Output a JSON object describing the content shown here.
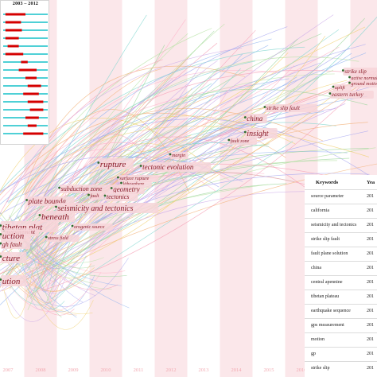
{
  "burst_panel": {
    "title": "2003 – 2012",
    "rows": [
      {
        "burst": [
          0.05,
          0.5
        ]
      },
      {
        "burst": [
          0.05,
          0.4
        ]
      },
      {
        "burst": [
          0.05,
          0.42
        ]
      },
      {
        "burst": [
          0.05,
          0.35
        ]
      },
      {
        "burst": [
          0.1,
          0.35
        ]
      },
      {
        "burst": [
          0.05,
          0.45
        ]
      },
      {
        "burst": [
          0.4,
          0.55
        ]
      },
      {
        "burst": [
          0.35,
          0.75
        ]
      },
      {
        "burst": [
          0.5,
          0.75
        ]
      },
      {
        "burst": [
          0.55,
          0.85
        ]
      },
      {
        "burst": [
          0.45,
          0.8
        ]
      },
      {
        "burst": [
          0.55,
          0.9
        ]
      },
      {
        "burst": [
          0.6,
          0.9
        ]
      },
      {
        "burst": [
          0.5,
          0.8
        ]
      },
      {
        "burst": [
          0.55,
          0.75
        ]
      },
      {
        "burst": [
          0.45,
          0.9
        ]
      }
    ]
  },
  "chart_data": {
    "type": "timeline",
    "x_ticks": [
      "2007",
      "2008",
      "2009",
      "2010",
      "2011",
      "2012",
      "2013",
      "2014",
      "2015",
      "2016",
      "2017",
      "2018",
      "2019",
      "2020"
    ],
    "nodes": [
      {
        "label": "earthquake se",
        "year": 2018.8,
        "row": 0.82,
        "size": 7
      },
      {
        "label": "strike slip",
        "year": 2017.3,
        "row": 0.91,
        "size": 7
      },
      {
        "label": "active normal fault",
        "year": 2017.5,
        "row": 0.99,
        "size": 6
      },
      {
        "label": "uplift",
        "year": 2017.0,
        "row": 1.11,
        "size": 6
      },
      {
        "label": "ground motion",
        "year": 2017.5,
        "row": 1.06,
        "size": 6
      },
      {
        "label": "eastern turkey",
        "year": 2016.9,
        "row": 1.2,
        "size": 7
      },
      {
        "label": "strike slip fault",
        "year": 2014.9,
        "row": 1.37,
        "size": 7
      },
      {
        "label": "china",
        "year": 2014.3,
        "row": 1.51,
        "size": 9
      },
      {
        "label": "insight",
        "year": 2014.3,
        "row": 1.7,
        "size": 10
      },
      {
        "label": "fault zone",
        "year": 2013.8,
        "row": 1.78,
        "size": 6
      },
      {
        "label": "margin",
        "year": 2012.0,
        "row": 1.96,
        "size": 6
      },
      {
        "label": "rupture",
        "year": 2009.8,
        "row": 2.09,
        "size": 11
      },
      {
        "label": "tectonic evolution",
        "year": 2011.1,
        "row": 2.12,
        "size": 9
      },
      {
        "label": "surface rupture",
        "year": 2010.4,
        "row": 2.25,
        "size": 6
      },
      {
        "label": "lithosphere",
        "year": 2010.5,
        "row": 2.32,
        "size": 6
      },
      {
        "label": "subduction zone",
        "year": 2008.6,
        "row": 2.39,
        "size": 8
      },
      {
        "label": "geometry",
        "year": 2010.2,
        "row": 2.4,
        "size": 9
      },
      {
        "label": "fault",
        "year": 2009.5,
        "row": 2.47,
        "size": 6
      },
      {
        "label": "tectonics",
        "year": 2010.0,
        "row": 2.49,
        "size": 8
      },
      {
        "label": "plate bounda",
        "year": 2007.6,
        "row": 2.55,
        "size": 9
      },
      {
        "label": "seismicity and tectonics",
        "year": 2008.5,
        "row": 2.64,
        "size": 10
      },
      {
        "label": "beneath",
        "year": 2008.0,
        "row": 2.75,
        "size": 11
      },
      {
        "label": "tibetan plat",
        "year": 2006.8,
        "row": 2.88,
        "size": 11
      },
      {
        "label": "orogenic source",
        "year": 2009.0,
        "row": 2.86,
        "size": 6
      },
      {
        "label": "measurement",
        "year": 2006.9,
        "row": 2.93,
        "size": 7
      },
      {
        "label": "uction",
        "year": 2006.8,
        "row": 2.99,
        "size": 11
      },
      {
        "label": "stress field",
        "year": 2008.2,
        "row": 3.0,
        "size": 6
      },
      {
        "label": "gh fault",
        "year": 2006.8,
        "row": 3.09,
        "size": 8
      },
      {
        "label": "cture",
        "year": 2006.8,
        "row": 3.27,
        "size": 11
      },
      {
        "label": "ution",
        "year": 2006.8,
        "row": 3.56,
        "size": 11
      }
    ]
  },
  "keywords_table": {
    "col_keywords": "Keywords",
    "col_year": "Yea",
    "rows": [
      {
        "keyword": "source parameter",
        "year": "201"
      },
      {
        "keyword": "california",
        "year": "201"
      },
      {
        "keyword": "seismicity and tectonics",
        "year": "201"
      },
      {
        "keyword": "strike slip fault",
        "year": "201"
      },
      {
        "keyword": "fault plane solution",
        "year": "201"
      },
      {
        "keyword": "china",
        "year": "201"
      },
      {
        "keyword": "central apennine",
        "year": "201"
      },
      {
        "keyword": "tibetan plateau",
        "year": "201"
      },
      {
        "keyword": "earthquake sequence",
        "year": "201"
      },
      {
        "keyword": "gps measurement",
        "year": "201"
      },
      {
        "keyword": "motion",
        "year": "201"
      },
      {
        "keyword": "gp",
        "year": "201"
      },
      {
        "keyword": "strike slip",
        "year": "201"
      }
    ]
  },
  "colors": {
    "burst_red": "#d40000",
    "burst_cyan": "#4fd0d6",
    "label_text": "#8b1c2a",
    "label_bg": "#f7d5d9",
    "stripe": "#fbe7ea",
    "tick_label": "#f2a8b0"
  }
}
